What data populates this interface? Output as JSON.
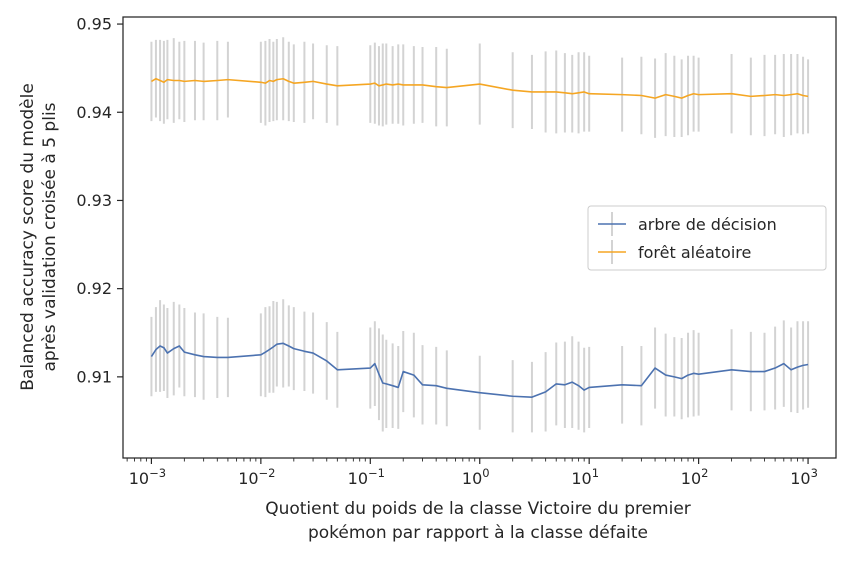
{
  "chart_data": {
    "type": "line",
    "title": "",
    "xlabel_lines": [
      "Quotient du poids de la classe Victoire du premier",
      "pokémon par rapport à la classe défaite"
    ],
    "ylabel_lines": [
      "Balanced accuracy score du modèle",
      "après validation croisée à 5 plis"
    ],
    "xscale": "log",
    "xlim": [
      0.00055,
      1800
    ],
    "ylim": [
      0.9008,
      0.9508
    ],
    "x_ticks": [
      {
        "value": 0.001,
        "base": "10",
        "exp": "−3"
      },
      {
        "value": 0.01,
        "base": "10",
        "exp": "−2"
      },
      {
        "value": 0.1,
        "base": "10",
        "exp": "−1"
      },
      {
        "value": 1,
        "base": "10",
        "exp": "0"
      },
      {
        "value": 10,
        "base": "10",
        "exp": "1"
      },
      {
        "value": 100,
        "base": "10",
        "exp": "2"
      },
      {
        "value": 1000,
        "base": "10",
        "exp": "3"
      }
    ],
    "y_ticks": [
      {
        "value": 0.91,
        "label": "0.91"
      },
      {
        "value": 0.92,
        "label": "0.92"
      },
      {
        "value": 0.93,
        "label": "0.93"
      },
      {
        "value": 0.94,
        "label": "0.94"
      },
      {
        "value": 0.95,
        "label": "0.95"
      }
    ],
    "grid": false,
    "legend_position": "center-right",
    "error_bar_color": "#d3d3d3",
    "x": [
      0.001,
      0.0011,
      0.0012,
      0.0013,
      0.0014,
      0.0016,
      0.0018,
      0.002,
      0.0025,
      0.003,
      0.004,
      0.005,
      0.01,
      0.011,
      0.012,
      0.013,
      0.014,
      0.016,
      0.018,
      0.02,
      0.025,
      0.03,
      0.04,
      0.05,
      0.1,
      0.11,
      0.12,
      0.13,
      0.14,
      0.16,
      0.18,
      0.2,
      0.25,
      0.3,
      0.4,
      0.5,
      1,
      2,
      3,
      4,
      5,
      6,
      7,
      8,
      9,
      10,
      20,
      30,
      40,
      50,
      60,
      70,
      80,
      90,
      100,
      200,
      300,
      400,
      500,
      600,
      700,
      800,
      900,
      1000
    ],
    "series": [
      {
        "name": "arbre de décision",
        "color": "#4c72b0",
        "values": [
          0.9123,
          0.9131,
          0.9135,
          0.9133,
          0.9127,
          0.9132,
          0.9135,
          0.9128,
          0.9125,
          0.9123,
          0.9122,
          0.9122,
          0.9125,
          0.9128,
          0.9131,
          0.9134,
          0.9137,
          0.9138,
          0.9135,
          0.9132,
          0.9129,
          0.9127,
          0.9118,
          0.9108,
          0.911,
          0.9115,
          0.9103,
          0.9093,
          0.9092,
          0.909,
          0.9088,
          0.9106,
          0.9102,
          0.9091,
          0.909,
          0.9087,
          0.9082,
          0.9078,
          0.9077,
          0.9083,
          0.9092,
          0.9091,
          0.9094,
          0.909,
          0.9085,
          0.9088,
          0.9091,
          0.909,
          0.911,
          0.9102,
          0.91,
          0.9098,
          0.9102,
          0.9104,
          0.9103,
          0.9108,
          0.9106,
          0.9106,
          0.911,
          0.9115,
          0.9108,
          0.9111,
          0.9113,
          0.9114
        ],
        "errors": [
          0.0045,
          0.0048,
          0.0052,
          0.0049,
          0.0051,
          0.0053,
          0.0047,
          0.005,
          0.0048,
          0.0049,
          0.0046,
          0.0045,
          0.0047,
          0.0051,
          0.0049,
          0.0052,
          0.0048,
          0.005,
          0.0046,
          0.0047,
          0.0045,
          0.0046,
          0.0044,
          0.0043,
          0.0046,
          0.0048,
          0.0052,
          0.0055,
          0.005,
          0.0048,
          0.0047,
          0.0046,
          0.0048,
          0.0045,
          0.0044,
          0.0043,
          0.0042,
          0.0041,
          0.004,
          0.0045,
          0.0047,
          0.0049,
          0.0052,
          0.005,
          0.0048,
          0.0046,
          0.0044,
          0.0045,
          0.0046,
          0.0047,
          0.0045,
          0.0046,
          0.0048,
          0.0049,
          0.0047,
          0.0046,
          0.0045,
          0.0044,
          0.0047,
          0.0049,
          0.0048,
          0.0052,
          0.005,
          0.0049
        ]
      },
      {
        "name": "forêt aléatoire",
        "color": "#f5a623",
        "values": [
          0.9435,
          0.9438,
          0.9436,
          0.9434,
          0.9437,
          0.9436,
          0.9436,
          0.9435,
          0.9436,
          0.9435,
          0.9436,
          0.9437,
          0.9434,
          0.9433,
          0.9436,
          0.9435,
          0.9437,
          0.9438,
          0.9435,
          0.9433,
          0.9434,
          0.9435,
          0.9432,
          0.943,
          0.9432,
          0.9433,
          0.943,
          0.9431,
          0.9432,
          0.9431,
          0.9432,
          0.9431,
          0.9431,
          0.9431,
          0.9429,
          0.9428,
          0.9432,
          0.9425,
          0.9423,
          0.9423,
          0.9423,
          0.9422,
          0.9421,
          0.9422,
          0.9423,
          0.9421,
          0.942,
          0.9419,
          0.9416,
          0.942,
          0.9418,
          0.9416,
          0.9419,
          0.9421,
          0.942,
          0.9421,
          0.9418,
          0.9419,
          0.942,
          0.9419,
          0.942,
          0.9421,
          0.9419,
          0.9418
        ],
        "errors": [
          0.0045,
          0.0044,
          0.0046,
          0.0047,
          0.0045,
          0.0048,
          0.0044,
          0.0046,
          0.0045,
          0.0044,
          0.0045,
          0.0043,
          0.0046,
          0.0048,
          0.0047,
          0.0045,
          0.0046,
          0.0047,
          0.0045,
          0.0044,
          0.0046,
          0.0043,
          0.0044,
          0.0045,
          0.0044,
          0.0046,
          0.0045,
          0.0047,
          0.0046,
          0.0044,
          0.0045,
          0.0046,
          0.0044,
          0.0043,
          0.0045,
          0.0044,
          0.0046,
          0.0043,
          0.0042,
          0.0046,
          0.0047,
          0.0045,
          0.0044,
          0.0046,
          0.0045,
          0.0043,
          0.0042,
          0.0044,
          0.0045,
          0.0047,
          0.0046,
          0.0044,
          0.0045,
          0.0043,
          0.0042,
          0.0045,
          0.0044,
          0.0046,
          0.0045,
          0.0047,
          0.0046,
          0.0045,
          0.0044,
          0.0042
        ]
      }
    ]
  }
}
